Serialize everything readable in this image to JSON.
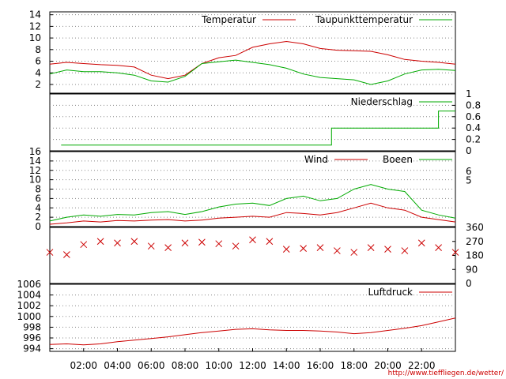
{
  "source_url": "http://www.tiefflie­gen.de/wetter/",
  "x_axis": {
    "ticks": [
      "02:00",
      "04:00",
      "06:00",
      "08:00",
      "10:00",
      "12:00",
      "14:00",
      "16:00",
      "18:00",
      "20:00",
      "22:00"
    ]
  },
  "chart_data": [
    {
      "type": "line",
      "ylim": [
        0.5,
        14.5
      ],
      "yticks": [
        "2",
        "4",
        "6",
        "8",
        "10",
        "12",
        "14"
      ],
      "grid": true,
      "legend_position": "top-right",
      "x": [
        "00:00",
        "01:00",
        "02:00",
        "03:00",
        "04:00",
        "05:00",
        "06:00",
        "07:00",
        "08:00",
        "09:00",
        "10:00",
        "11:00",
        "12:00",
        "13:00",
        "14:00",
        "15:00",
        "16:00",
        "17:00",
        "18:00",
        "19:00",
        "20:00",
        "21:00",
        "22:00",
        "23:00",
        "24:00"
      ],
      "series": [
        {
          "name": "Temperatur",
          "color": "#cc0000",
          "values": [
            5.5,
            5.8,
            5.6,
            5.4,
            5.3,
            5.0,
            3.6,
            3.0,
            3.6,
            5.6,
            6.6,
            7.0,
            8.4,
            9.0,
            9.4,
            9.0,
            8.2,
            7.9,
            7.8,
            7.7,
            7.1,
            6.3,
            6.0,
            5.8,
            5.5
          ]
        },
        {
          "name": "Taupunkttemperatur",
          "color": "#00aa00",
          "values": [
            3.8,
            4.5,
            4.2,
            4.2,
            4.0,
            3.6,
            2.6,
            2.4,
            3.4,
            5.6,
            5.9,
            6.2,
            5.8,
            5.4,
            4.8,
            3.8,
            3.2,
            3.0,
            2.8,
            2.0,
            2.6,
            3.8,
            4.5,
            4.6,
            4.4
          ]
        }
      ]
    },
    {
      "type": "line",
      "ylim": [
        0,
        1
      ],
      "yticks": [
        "0",
        "0.2",
        "0.4",
        "0.6",
        "0.8",
        "1"
      ],
      "grid": true,
      "legend_position": "top-right",
      "x": [
        "00:40",
        "16:40",
        "16:40",
        "23:00",
        "23:00",
        "24:00"
      ],
      "series": [
        {
          "name": "Niederschlag",
          "color": "#00aa00",
          "values": [
            0.1,
            0.1,
            0.4,
            0.4,
            0.7,
            0.7
          ]
        }
      ]
    },
    {
      "type": "line",
      "ylim": [
        0,
        16
      ],
      "yticks": [
        "0",
        "2",
        "4",
        "6",
        "8",
        "10",
        "12",
        "14",
        "16"
      ],
      "right_ticks": [
        "5",
        "6"
      ],
      "grid": true,
      "legend_position": "top-right",
      "x": [
        "00:00",
        "01:00",
        "02:00",
        "03:00",
        "04:00",
        "05:00",
        "06:00",
        "07:00",
        "08:00",
        "09:00",
        "10:00",
        "11:00",
        "12:00",
        "13:00",
        "14:00",
        "15:00",
        "16:00",
        "17:00",
        "18:00",
        "19:00",
        "20:00",
        "21:00",
        "22:00",
        "23:00",
        "24:00"
      ],
      "series": [
        {
          "name": "Wind",
          "color": "#cc0000",
          "values": [
            0.5,
            0.8,
            1.2,
            1.0,
            1.3,
            1.2,
            1.4,
            1.5,
            1.2,
            1.4,
            1.8,
            2.0,
            2.2,
            2.0,
            3.0,
            2.8,
            2.5,
            3.0,
            4.0,
            5.0,
            4.0,
            3.5,
            2.0,
            1.5,
            1.0
          ]
        },
        {
          "name": "Boeen",
          "color": "#00aa00",
          "values": [
            1.2,
            2.0,
            2.5,
            2.2,
            2.6,
            2.5,
            3.0,
            3.2,
            2.6,
            3.2,
            4.2,
            4.8,
            5.0,
            4.5,
            6.0,
            6.5,
            5.5,
            6.0,
            8.0,
            9.0,
            8.0,
            7.5,
            3.5,
            2.5,
            1.8
          ]
        }
      ]
    },
    {
      "type": "scatter",
      "ylim": [
        0,
        360
      ],
      "yticks": [
        "0",
        "90",
        "180",
        "270",
        "360"
      ],
      "grid": false,
      "series": [
        {
          "name": "",
          "color": "#cc0000",
          "marker": "x",
          "x": [
            "00:00",
            "01:00",
            "02:00",
            "03:00",
            "04:00",
            "05:00",
            "06:00",
            "07:00",
            "08:00",
            "09:00",
            "10:00",
            "11:00",
            "12:00",
            "13:00",
            "14:00",
            "15:00",
            "16:00",
            "17:00",
            "18:00",
            "19:00",
            "20:00",
            "21:00",
            "22:00",
            "23:00",
            "24:00"
          ],
          "values": [
            200,
            185,
            250,
            270,
            260,
            270,
            240,
            230,
            260,
            265,
            255,
            240,
            280,
            270,
            220,
            225,
            230,
            210,
            200,
            230,
            220,
            210,
            260,
            230,
            200
          ]
        }
      ]
    },
    {
      "type": "line",
      "ylim": [
        993.5,
        1006
      ],
      "yticks": [
        "994",
        "996",
        "998",
        "1000",
        "1002",
        "1004",
        "1006"
      ],
      "grid": true,
      "legend_position": "top-right",
      "x": [
        "00:00",
        "01:00",
        "02:00",
        "03:00",
        "04:00",
        "05:00",
        "06:00",
        "07:00",
        "08:00",
        "09:00",
        "10:00",
        "11:00",
        "12:00",
        "13:00",
        "14:00",
        "15:00",
        "16:00",
        "17:00",
        "18:00",
        "19:00",
        "20:00",
        "21:00",
        "22:00",
        "23:00",
        "24:00"
      ],
      "series": [
        {
          "name": "Luftdruck",
          "color": "#cc0000",
          "values": [
            994.8,
            994.9,
            994.7,
            994.9,
            995.3,
            995.6,
            995.9,
            996.2,
            996.6,
            997.0,
            997.3,
            997.6,
            997.7,
            997.5,
            997.4,
            997.4,
            997.3,
            997.1,
            996.8,
            997.0,
            997.4,
            997.8,
            998.3,
            999.0,
            999.7
          ]
        }
      ]
    }
  ]
}
